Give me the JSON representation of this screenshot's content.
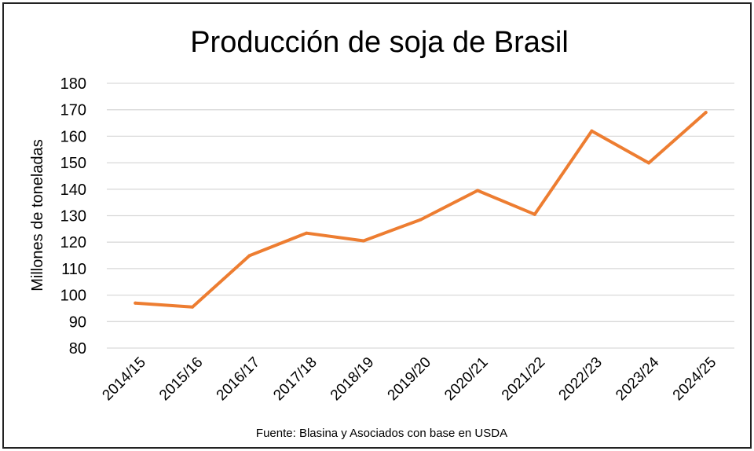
{
  "chart_data": {
    "type": "line",
    "title": "Producción de soja de Brasil",
    "ylabel": "Millones de toneladas",
    "xlabel": "",
    "source": "Fuente: Blasina y Asociados con base en USDA",
    "categories": [
      "2014/15",
      "2015/16",
      "2016/17",
      "2017/18",
      "2018/19",
      "2019/20",
      "2020/21",
      "2021/22",
      "2022/23",
      "2023/24",
      "2024/25"
    ],
    "series": [
      {
        "values": [
          97,
          95.5,
          114.9,
          123.4,
          120.5,
          128.5,
          139.5,
          130.5,
          162,
          149.9,
          169
        ]
      }
    ],
    "ylim": [
      80,
      180
    ],
    "yticks": [
      80,
      90,
      100,
      110,
      120,
      130,
      140,
      150,
      160,
      170,
      180
    ],
    "grid": true,
    "legend": "none",
    "colors": {
      "line": "#ED7D31",
      "grid": "#D9D9D9",
      "text": "#000000"
    }
  }
}
